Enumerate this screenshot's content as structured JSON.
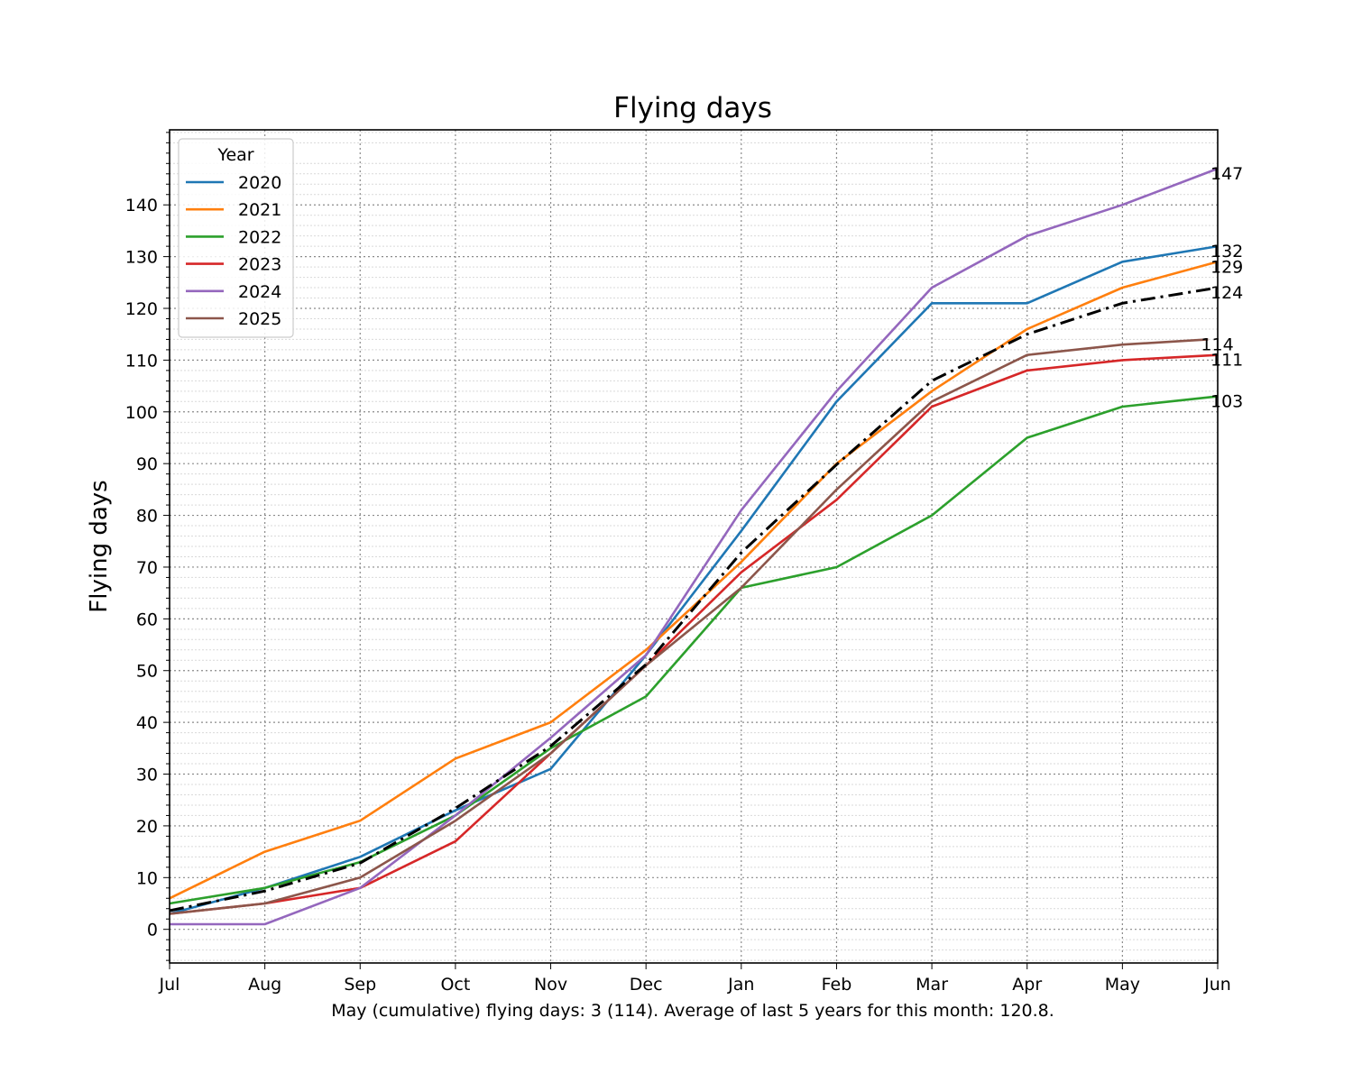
{
  "chart_data": {
    "type": "line",
    "title": "Flying days",
    "xlabel": "",
    "ylabel": "Flying days",
    "x": [
      "Jul",
      "Aug",
      "Sep",
      "Oct",
      "Nov",
      "Dec",
      "Jan",
      "Feb",
      "Mar",
      "Apr",
      "May",
      "Jun"
    ],
    "ylim": [
      -6.5,
      154.5
    ],
    "yticks": [
      0,
      10,
      20,
      30,
      40,
      50,
      60,
      70,
      80,
      90,
      100,
      110,
      120,
      130,
      140
    ],
    "grid": true,
    "legend": {
      "title": "Year",
      "position": "top-left"
    },
    "series": [
      {
        "name": "2020",
        "color": "#1f77b4",
        "x": [
          0,
          1,
          2,
          3,
          4,
          5,
          6,
          7,
          8,
          9,
          10,
          11
        ],
        "values": [
          3,
          8,
          14,
          23,
          31,
          53,
          77,
          102,
          121,
          121,
          129,
          132
        ],
        "end_label": "132"
      },
      {
        "name": "2021",
        "color": "#ff7f0e",
        "x": [
          0,
          1,
          2,
          3,
          4,
          5,
          6,
          7,
          8,
          9,
          10,
          11
        ],
        "values": [
          6,
          15,
          21,
          33,
          40,
          54,
          71,
          90,
          104,
          116,
          124,
          129
        ],
        "end_label": "129"
      },
      {
        "name": "2022",
        "color": "#2ca02c",
        "x": [
          0,
          1,
          2,
          3,
          4,
          5,
          6,
          7,
          8,
          9,
          10,
          11
        ],
        "values": [
          5,
          8,
          13,
          22,
          35,
          45,
          66,
          70,
          80,
          95,
          101,
          103
        ],
        "end_label": "103"
      },
      {
        "name": "2023",
        "color": "#d62728",
        "x": [
          0,
          1,
          2,
          3,
          4,
          5,
          6,
          7,
          8,
          9,
          10,
          11
        ],
        "values": [
          3,
          5,
          8,
          17,
          34,
          51,
          69,
          83,
          101,
          108,
          110,
          111
        ],
        "end_label": "111"
      },
      {
        "name": "2024",
        "color": "#9467bd",
        "x": [
          0,
          1,
          2,
          3,
          4,
          5,
          6,
          7,
          8,
          9,
          10,
          11
        ],
        "values": [
          1,
          1,
          8,
          22,
          37,
          53,
          81,
          104,
          124,
          134,
          140,
          147
        ],
        "end_label": "147"
      },
      {
        "name": "2025",
        "color": "#8c564b",
        "x": [
          0,
          1,
          2,
          3,
          4,
          5,
          6,
          7,
          8,
          9,
          10,
          10.9
        ],
        "values": [
          3,
          5,
          10,
          21,
          34,
          51,
          66,
          85,
          102,
          111,
          113,
          114
        ],
        "end_label": "114"
      },
      {
        "color": "#000000",
        "style": "dashdot",
        "x": [
          0,
          1,
          2,
          3,
          4,
          5,
          6,
          7,
          8,
          9,
          10,
          11
        ],
        "values": [
          3.6,
          7.4,
          12.8,
          23.4,
          35.4,
          51.2,
          72.8,
          89.8,
          106,
          115,
          121,
          124
        ],
        "end_label": "124"
      }
    ],
    "footer": "May (cumulative) flying days:  3 (114). Average of last 5 years for this month: 120.8."
  }
}
